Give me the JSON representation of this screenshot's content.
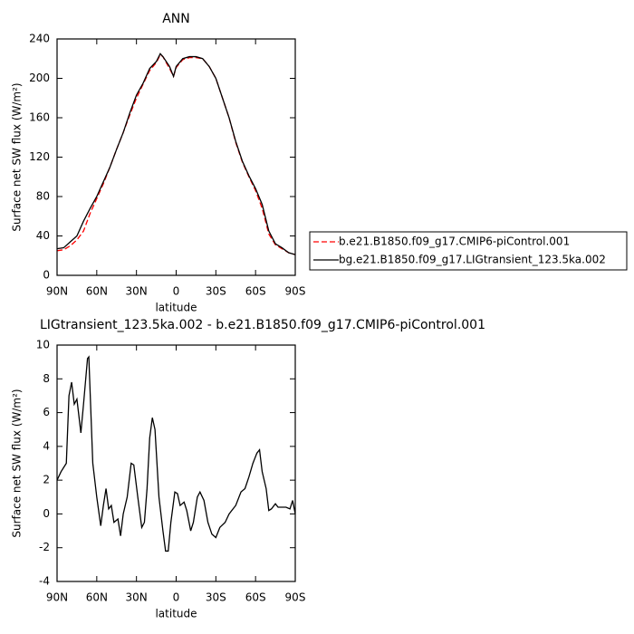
{
  "chart_data": [
    {
      "type": "line",
      "title": "ANN",
      "xlabel": "latitude",
      "ylabel": "Surface net SW flux (W/m²)",
      "xlim": [
        90,
        -90
      ],
      "xticks": [
        {
          "value": 90,
          "label": "90N"
        },
        {
          "value": 60,
          "label": "60N"
        },
        {
          "value": 30,
          "label": "30N"
        },
        0,
        {
          "value": -30,
          "label": "30S"
        },
        {
          "value": -60,
          "label": "60S"
        },
        {
          "value": -90,
          "label": "90S"
        }
      ],
      "ylim": [
        0,
        240
      ],
      "yticks": [
        0,
        40,
        80,
        120,
        160,
        200,
        240
      ],
      "legend": "right",
      "x": [
        90,
        85,
        80,
        75,
        70,
        65,
        60,
        55,
        50,
        45,
        40,
        35,
        30,
        25,
        20,
        15,
        12,
        10,
        5,
        2,
        0,
        -5,
        -10,
        -15,
        -20,
        -25,
        -30,
        -35,
        -40,
        -45,
        -50,
        -55,
        -60,
        -65,
        -70,
        -75,
        -80,
        -85,
        -90
      ],
      "series": [
        {
          "name": "b.e21.B1850.f09_g17.CMIP6-piControl.001",
          "color": "#ff0000",
          "dash": true,
          "values": [
            25,
            26,
            30,
            36,
            45,
            63,
            78,
            93,
            110,
            128,
            145,
            163,
            180,
            194,
            208,
            216,
            224,
            222,
            210,
            202,
            211,
            219,
            221,
            221,
            220,
            212,
            200,
            180,
            160,
            135,
            115,
            100,
            86,
            68,
            42,
            31,
            27,
            23,
            21
          ]
        },
        {
          "name": "bg.e21.B1850.f09_g17.LIGtransient_123.5ka.002",
          "color": "#000000",
          "dash": false,
          "values": [
            27,
            28,
            34,
            40,
            55,
            68,
            80,
            95,
            110,
            128,
            145,
            165,
            183,
            195,
            210,
            217,
            225,
            222,
            212,
            202,
            212,
            220,
            222,
            222,
            220,
            212,
            200,
            180,
            160,
            136,
            116,
            101,
            88,
            72,
            45,
            32,
            28,
            23,
            21
          ]
        }
      ]
    },
    {
      "type": "line",
      "title": "LIGtransient_123.5ka.002 - b.e21.B1850.f09_g17.CMIP6-piControl.001",
      "xlabel": "latitude",
      "ylabel": "Surface net SW flux (W/m²)",
      "xlim": [
        90,
        -90
      ],
      "xticks": [
        {
          "value": 90,
          "label": "90N"
        },
        {
          "value": 60,
          "label": "60N"
        },
        {
          "value": 30,
          "label": "30N"
        },
        0,
        {
          "value": -30,
          "label": "30S"
        },
        {
          "value": -60,
          "label": "60S"
        },
        {
          "value": -90,
          "label": "90S"
        }
      ],
      "ylim": [
        -4,
        10
      ],
      "yticks": [
        -4,
        -2,
        0,
        2,
        4,
        6,
        8,
        10
      ],
      "x": [
        90,
        87,
        83,
        81,
        79,
        77,
        75,
        72,
        70,
        67,
        66,
        63,
        60,
        57,
        55,
        53,
        51,
        49,
        47,
        44,
        42,
        40,
        37,
        34,
        32,
        29,
        26,
        24,
        22,
        20,
        18,
        16,
        13,
        10,
        8,
        6,
        4,
        1,
        -1,
        -3,
        -6,
        -8,
        -11,
        -13,
        -16,
        -18,
        -21,
        -24,
        -27,
        -30,
        -33,
        -37,
        -40,
        -45,
        -49,
        -52,
        -55,
        -58,
        -61,
        -63,
        -65,
        -68,
        -70,
        -72,
        -75,
        -77,
        -80,
        -83,
        -86,
        -88,
        -90
      ],
      "series": [
        {
          "color": "#000000",
          "dash": false,
          "values": [
            2.0,
            2.5,
            3.0,
            7.0,
            7.8,
            6.5,
            6.8,
            4.8,
            6.5,
            9.2,
            9.3,
            3.0,
            1.0,
            -0.7,
            0.5,
            1.5,
            0.3,
            0.5,
            -0.5,
            -0.3,
            -1.3,
            0,
            1.0,
            3.0,
            2.9,
            1.0,
            -0.8,
            -0.5,
            1.5,
            4.5,
            5.7,
            5.0,
            1.0,
            -1.0,
            -2.2,
            -2.2,
            -0.5,
            1.3,
            1.2,
            0.5,
            0.7,
            0.2,
            -1.0,
            -0.5,
            1.0,
            1.3,
            0.8,
            -0.5,
            -1.2,
            -1.4,
            -0.8,
            -0.5,
            0,
            0.5,
            1.3,
            1.5,
            2.2,
            3.0,
            3.6,
            3.8,
            2.5,
            1.5,
            0.2,
            0.3,
            0.6,
            0.4,
            0.4,
            0.4,
            0.3,
            0.8,
            0
          ]
        }
      ]
    }
  ]
}
